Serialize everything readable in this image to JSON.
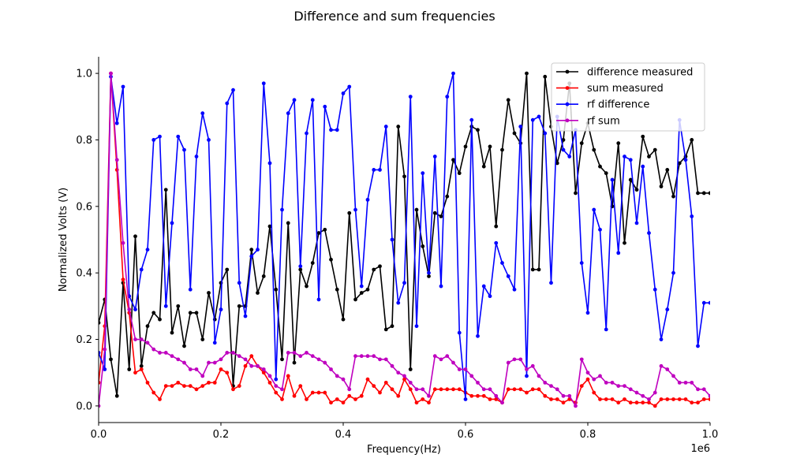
{
  "chart_data": {
    "type": "line",
    "title": "Difference and sum frequencies",
    "xlabel": "Frequency(Hz)",
    "ylabel": "Normalized Volts (V)",
    "x_offset_text": "1e6",
    "xlim": [
      0,
      1.0
    ],
    "ylim": [
      -0.05,
      1.05
    ],
    "xticks": [
      0.0,
      0.2,
      0.4,
      0.6,
      0.8,
      1.0
    ],
    "xtick_labels": [
      "0.0",
      "0.2",
      "0.4",
      "0.6",
      "0.8",
      "1.0"
    ],
    "yticks": [
      0.0,
      0.2,
      0.4,
      0.6,
      0.8,
      1.0
    ],
    "ytick_labels": [
      "0.0",
      "0.2",
      "0.4",
      "0.6",
      "0.8",
      "1.0"
    ],
    "grid": false,
    "legend_position": "top-right",
    "series": [
      {
        "name": "difference measured",
        "color": "#000000",
        "x": [
          0.0,
          0.01,
          0.02,
          0.03,
          0.04,
          0.05,
          0.06,
          0.07,
          0.08,
          0.09,
          0.1,
          0.11,
          0.12,
          0.13,
          0.14,
          0.15,
          0.16,
          0.17,
          0.18,
          0.19,
          0.2,
          0.21,
          0.22,
          0.23,
          0.24,
          0.25,
          0.26,
          0.27,
          0.28,
          0.29,
          0.3,
          0.31,
          0.32,
          0.33,
          0.34,
          0.35,
          0.36,
          0.37,
          0.38,
          0.39,
          0.4,
          0.41,
          0.42,
          0.43,
          0.44,
          0.45,
          0.46,
          0.47,
          0.48,
          0.49,
          0.5,
          0.51,
          0.52,
          0.53,
          0.54,
          0.55,
          0.56,
          0.57,
          0.58,
          0.59,
          0.6,
          0.61,
          0.62,
          0.63,
          0.64,
          0.65,
          0.66,
          0.67,
          0.68,
          0.69,
          0.7,
          0.71,
          0.72,
          0.73,
          0.74,
          0.75,
          0.76,
          0.77,
          0.78,
          0.79,
          0.8,
          0.81,
          0.82,
          0.83,
          0.84,
          0.85,
          0.86,
          0.87,
          0.88,
          0.89,
          0.9,
          0.91,
          0.92,
          0.93,
          0.94,
          0.95,
          0.96,
          0.97,
          0.98,
          0.99,
          1.0
        ],
        "y": [
          0.25,
          0.32,
          0.14,
          0.03,
          0.37,
          0.11,
          0.51,
          0.12,
          0.24,
          0.28,
          0.26,
          0.65,
          0.22,
          0.3,
          0.18,
          0.28,
          0.28,
          0.2,
          0.34,
          0.26,
          0.37,
          0.41,
          0.06,
          0.3,
          0.3,
          0.47,
          0.34,
          0.39,
          0.54,
          0.35,
          0.14,
          0.55,
          0.13,
          0.41,
          0.36,
          0.43,
          0.52,
          0.53,
          0.44,
          0.35,
          0.26,
          0.58,
          0.32,
          0.34,
          0.35,
          0.41,
          0.42,
          0.23,
          0.24,
          0.84,
          0.69,
          0.11,
          0.59,
          0.48,
          0.39,
          0.58,
          0.57,
          0.63,
          0.74,
          0.7,
          0.78,
          0.84,
          0.83,
          0.72,
          0.78,
          0.54,
          0.77,
          0.92,
          0.82,
          0.79,
          1.0,
          0.41,
          0.41,
          0.99,
          0.84,
          0.73,
          0.8,
          0.97,
          0.64,
          0.79,
          0.85,
          0.77,
          0.72,
          0.7,
          0.6,
          0.79,
          0.49,
          0.68,
          0.65,
          0.81,
          0.75,
          0.77,
          0.66,
          0.71,
          0.63,
          0.73,
          0.75,
          0.8,
          0.64,
          0.64,
          0.64
        ]
      },
      {
        "name": "sum measured",
        "color": "#ff0000",
        "x": [
          0.0,
          0.01,
          0.02,
          0.03,
          0.04,
          0.05,
          0.06,
          0.07,
          0.08,
          0.09,
          0.1,
          0.11,
          0.12,
          0.13,
          0.14,
          0.15,
          0.16,
          0.17,
          0.18,
          0.19,
          0.2,
          0.21,
          0.22,
          0.23,
          0.24,
          0.25,
          0.26,
          0.27,
          0.28,
          0.29,
          0.3,
          0.31,
          0.32,
          0.33,
          0.34,
          0.35,
          0.36,
          0.37,
          0.38,
          0.39,
          0.4,
          0.41,
          0.42,
          0.43,
          0.44,
          0.45,
          0.46,
          0.47,
          0.48,
          0.49,
          0.5,
          0.51,
          0.52,
          0.53,
          0.54,
          0.55,
          0.56,
          0.57,
          0.58,
          0.59,
          0.6,
          0.61,
          0.62,
          0.63,
          0.64,
          0.65,
          0.66,
          0.67,
          0.68,
          0.69,
          0.7,
          0.71,
          0.72,
          0.73,
          0.74,
          0.75,
          0.76,
          0.77,
          0.78,
          0.79,
          0.8,
          0.81,
          0.82,
          0.83,
          0.84,
          0.85,
          0.86,
          0.87,
          0.88,
          0.89,
          0.9,
          0.91,
          0.92,
          0.93,
          0.94,
          0.95,
          0.96,
          0.97,
          0.98,
          0.99,
          1.0
        ],
        "y": [
          0.07,
          0.24,
          1.0,
          0.71,
          0.38,
          0.28,
          0.1,
          0.11,
          0.07,
          0.04,
          0.02,
          0.06,
          0.06,
          0.07,
          0.06,
          0.06,
          0.05,
          0.06,
          0.07,
          0.07,
          0.11,
          0.1,
          0.05,
          0.06,
          0.12,
          0.15,
          0.12,
          0.1,
          0.07,
          0.04,
          0.02,
          0.09,
          0.03,
          0.06,
          0.02,
          0.04,
          0.04,
          0.04,
          0.01,
          0.02,
          0.01,
          0.03,
          0.02,
          0.03,
          0.08,
          0.06,
          0.04,
          0.07,
          0.05,
          0.03,
          0.08,
          0.05,
          0.01,
          0.02,
          0.01,
          0.05,
          0.05,
          0.05,
          0.05,
          0.05,
          0.04,
          0.03,
          0.03,
          0.03,
          0.02,
          0.02,
          0.01,
          0.05,
          0.05,
          0.05,
          0.04,
          0.05,
          0.05,
          0.03,
          0.02,
          0.02,
          0.01,
          0.02,
          0.01,
          0.06,
          0.08,
          0.04,
          0.02,
          0.02,
          0.02,
          0.01,
          0.02,
          0.01,
          0.01,
          0.01,
          0.01,
          0.0,
          0.02,
          0.02,
          0.02,
          0.02,
          0.02,
          0.01,
          0.01,
          0.02,
          0.02
        ]
      },
      {
        "name": "rf difference",
        "color": "#0000ff",
        "x": [
          0.0,
          0.01,
          0.02,
          0.03,
          0.04,
          0.05,
          0.06,
          0.07,
          0.08,
          0.09,
          0.1,
          0.11,
          0.12,
          0.13,
          0.14,
          0.15,
          0.16,
          0.17,
          0.18,
          0.19,
          0.2,
          0.21,
          0.22,
          0.23,
          0.24,
          0.25,
          0.26,
          0.27,
          0.28,
          0.29,
          0.3,
          0.31,
          0.32,
          0.33,
          0.34,
          0.35,
          0.36,
          0.37,
          0.38,
          0.39,
          0.4,
          0.41,
          0.42,
          0.43,
          0.44,
          0.45,
          0.46,
          0.47,
          0.48,
          0.49,
          0.5,
          0.51,
          0.52,
          0.53,
          0.54,
          0.55,
          0.56,
          0.57,
          0.58,
          0.59,
          0.6,
          0.61,
          0.62,
          0.63,
          0.64,
          0.65,
          0.66,
          0.67,
          0.68,
          0.69,
          0.7,
          0.71,
          0.72,
          0.73,
          0.74,
          0.75,
          0.76,
          0.77,
          0.78,
          0.79,
          0.8,
          0.81,
          0.82,
          0.83,
          0.84,
          0.85,
          0.86,
          0.87,
          0.88,
          0.89,
          0.9,
          0.91,
          0.92,
          0.93,
          0.94,
          0.95,
          0.96,
          0.97,
          0.98,
          0.99,
          1.0
        ],
        "y": [
          0.16,
          0.11,
          0.99,
          0.85,
          0.96,
          0.33,
          0.29,
          0.41,
          0.47,
          0.8,
          0.81,
          0.3,
          0.55,
          0.81,
          0.77,
          0.35,
          0.75,
          0.88,
          0.8,
          0.19,
          0.29,
          0.91,
          0.95,
          0.37,
          0.27,
          0.45,
          0.47,
          0.97,
          0.73,
          0.08,
          0.59,
          0.88,
          0.92,
          0.42,
          0.82,
          0.92,
          0.32,
          0.9,
          0.83,
          0.83,
          0.94,
          0.96,
          0.59,
          0.36,
          0.62,
          0.71,
          0.71,
          0.84,
          0.5,
          0.31,
          0.37,
          0.93,
          0.24,
          0.7,
          0.4,
          0.75,
          0.36,
          0.93,
          1.0,
          0.22,
          0.02,
          0.86,
          0.21,
          0.36,
          0.33,
          0.49,
          0.43,
          0.39,
          0.35,
          0.84,
          0.09,
          0.86,
          0.87,
          0.82,
          0.37,
          0.87,
          0.77,
          0.75,
          0.83,
          0.43,
          0.28,
          0.59,
          0.53,
          0.23,
          0.68,
          0.46,
          0.75,
          0.74,
          0.55,
          0.72,
          0.52,
          0.35,
          0.2,
          0.29,
          0.4,
          0.86,
          0.74,
          0.57,
          0.18,
          0.31,
          0.31
        ]
      },
      {
        "name": "rf sum",
        "color": "#bf00bf",
        "x": [
          0.0,
          0.01,
          0.02,
          0.03,
          0.04,
          0.05,
          0.06,
          0.07,
          0.08,
          0.09,
          0.1,
          0.11,
          0.12,
          0.13,
          0.14,
          0.15,
          0.16,
          0.17,
          0.18,
          0.19,
          0.2,
          0.21,
          0.22,
          0.23,
          0.24,
          0.25,
          0.26,
          0.27,
          0.28,
          0.29,
          0.3,
          0.31,
          0.32,
          0.33,
          0.34,
          0.35,
          0.36,
          0.37,
          0.38,
          0.39,
          0.4,
          0.41,
          0.42,
          0.43,
          0.44,
          0.45,
          0.46,
          0.47,
          0.48,
          0.49,
          0.5,
          0.51,
          0.52,
          0.53,
          0.54,
          0.55,
          0.56,
          0.57,
          0.58,
          0.59,
          0.6,
          0.61,
          0.62,
          0.63,
          0.64,
          0.65,
          0.66,
          0.67,
          0.68,
          0.69,
          0.7,
          0.71,
          0.72,
          0.73,
          0.74,
          0.75,
          0.76,
          0.77,
          0.78,
          0.79,
          0.8,
          0.81,
          0.82,
          0.83,
          0.84,
          0.85,
          0.86,
          0.87,
          0.88,
          0.89,
          0.9,
          0.91,
          0.92,
          0.93,
          0.94,
          0.95,
          0.96,
          0.97,
          0.98,
          0.99,
          1.0
        ],
        "y": [
          0.0,
          0.17,
          1.0,
          0.74,
          0.49,
          0.29,
          0.2,
          0.2,
          0.19,
          0.17,
          0.16,
          0.16,
          0.15,
          0.14,
          0.13,
          0.11,
          0.11,
          0.09,
          0.13,
          0.13,
          0.14,
          0.16,
          0.16,
          0.15,
          0.14,
          0.12,
          0.12,
          0.11,
          0.09,
          0.06,
          0.05,
          0.16,
          0.16,
          0.15,
          0.16,
          0.15,
          0.14,
          0.13,
          0.11,
          0.09,
          0.08,
          0.05,
          0.15,
          0.15,
          0.15,
          0.15,
          0.14,
          0.14,
          0.12,
          0.1,
          0.09,
          0.07,
          0.05,
          0.05,
          0.03,
          0.15,
          0.14,
          0.15,
          0.13,
          0.11,
          0.11,
          0.09,
          0.07,
          0.05,
          0.05,
          0.03,
          0.01,
          0.13,
          0.14,
          0.14,
          0.11,
          0.12,
          0.09,
          0.07,
          0.06,
          0.05,
          0.03,
          0.03,
          0.0,
          0.14,
          0.1,
          0.08,
          0.09,
          0.07,
          0.07,
          0.06,
          0.06,
          0.05,
          0.04,
          0.03,
          0.02,
          0.04,
          0.12,
          0.11,
          0.09,
          0.07,
          0.07,
          0.07,
          0.05,
          0.05,
          0.03
        ]
      }
    ]
  }
}
